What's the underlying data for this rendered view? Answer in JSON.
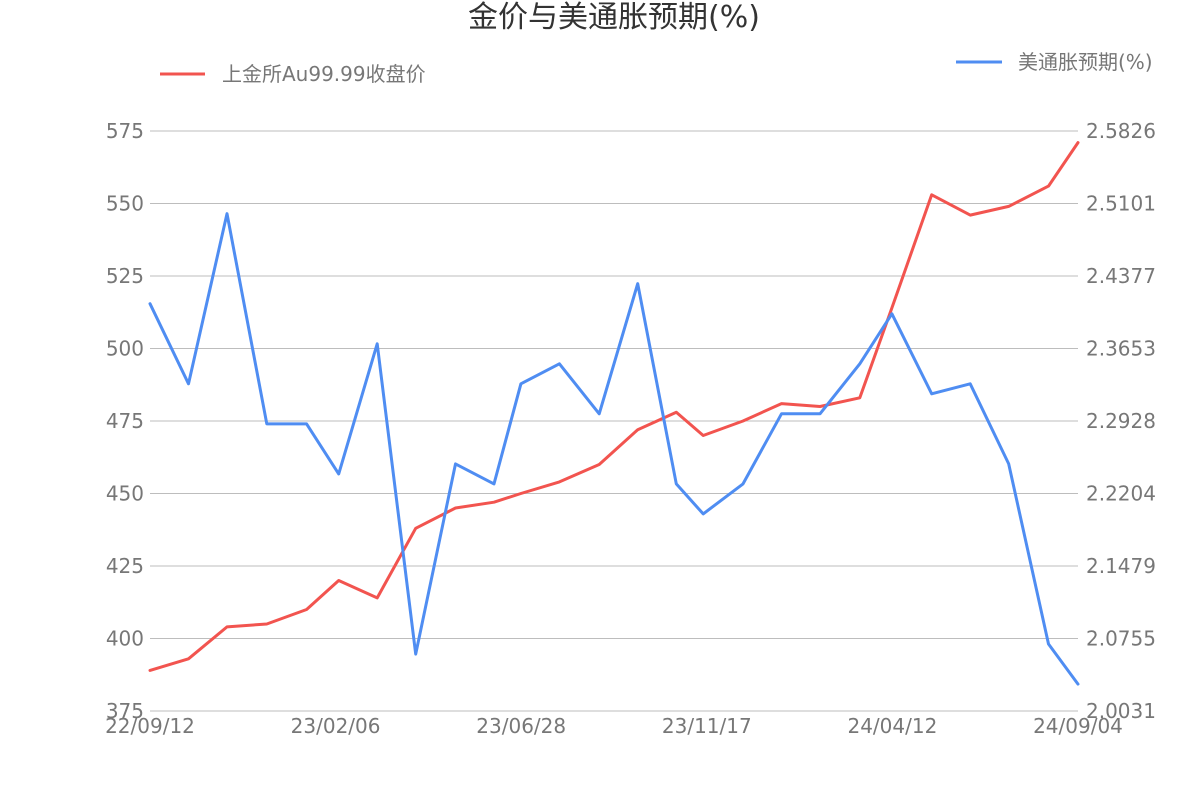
{
  "chart_data": {
    "type": "line",
    "title": "金价与美通胀预期(%)",
    "x_tick_labels": [
      "22/09/12",
      "23/02/06",
      "23/06/28",
      "23/11/17",
      "24/04/12",
      "24/09/04"
    ],
    "left_axis": {
      "ylim": [
        375,
        575
      ],
      "tick_labels": [
        "375",
        "400",
        "425",
        "450",
        "475",
        "500",
        "525",
        "550",
        "575"
      ]
    },
    "right_axis": {
      "ylim": [
        2.0031,
        2.5826
      ],
      "tick_labels": [
        "2.0031",
        "2.0755",
        "2.1479",
        "2.2204",
        "2.2928",
        "2.3653",
        "2.4377",
        "2.5101",
        "2.5826"
      ]
    },
    "grid": true,
    "legend": [
      {
        "name": "上金所Au99.99收盘价",
        "color": "#F2544F",
        "axis": "left",
        "placement": "top-left"
      },
      {
        "name": "美通胀预期(%)",
        "color": "#4F8DF2",
        "axis": "right",
        "placement": "top-right"
      }
    ],
    "x": [
      "2022-09-12",
      "2022-10-12",
      "2022-11-11",
      "2022-12-12",
      "2023-01-12",
      "2023-02-06",
      "2023-03-08",
      "2023-04-07",
      "2023-05-08",
      "2023-06-07",
      "2023-06-28",
      "2023-07-28",
      "2023-08-28",
      "2023-09-27",
      "2023-10-27",
      "2023-11-17",
      "2023-12-18",
      "2024-01-17",
      "2024-02-16",
      "2024-03-18",
      "2024-04-12",
      "2024-05-13",
      "2024-06-12",
      "2024-07-12",
      "2024-08-12",
      "2024-09-04"
    ],
    "series": [
      {
        "name": "上金所Au99.99收盘价",
        "color": "#F2544F",
        "axis": "left",
        "values": [
          389,
          393,
          404,
          405,
          410,
          420,
          414,
          438,
          445,
          447,
          450,
          454,
          460,
          472,
          478,
          470,
          475,
          481,
          480,
          483,
          514,
          553,
          546,
          549,
          556,
          571
        ]
      },
      {
        "name": "美通胀预期(%)",
        "color": "#4F8DF2",
        "axis": "right",
        "values": [
          2.41,
          2.33,
          2.5,
          2.29,
          2.29,
          2.24,
          2.37,
          2.06,
          2.25,
          2.23,
          2.33,
          2.35,
          2.3,
          2.43,
          2.23,
          2.2,
          2.23,
          2.3,
          2.3,
          2.35,
          2.4,
          2.32,
          2.33,
          2.25,
          2.07,
          2.03
        ]
      }
    ]
  }
}
